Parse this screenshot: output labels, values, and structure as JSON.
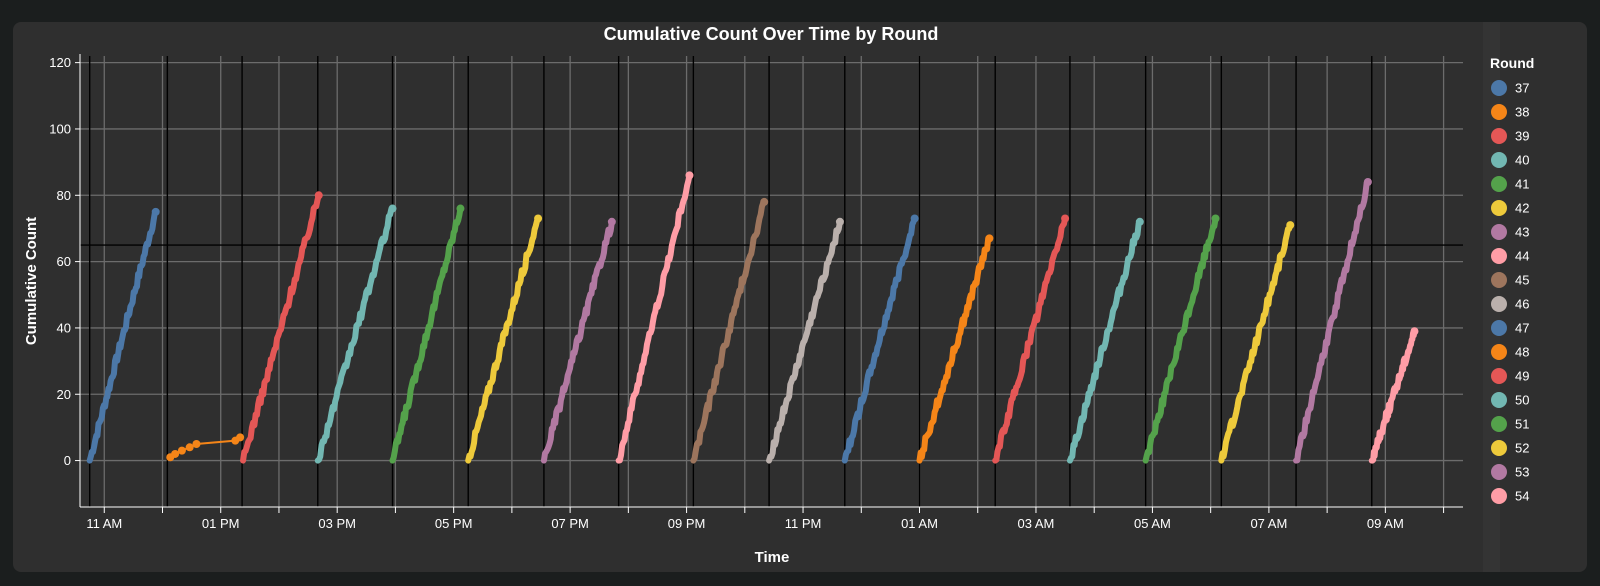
{
  "chart_data": {
    "type": "line",
    "title": "Cumulative Count Over Time by Round",
    "xlabel": "Time",
    "ylabel": "Cumulative Count",
    "ylim": [
      -14,
      122
    ],
    "yticks": [
      0,
      20,
      40,
      60,
      80,
      100,
      120
    ],
    "xlim": [
      "2024-01-01T10:35",
      "2024-01-02T10:20"
    ],
    "xticks": [
      {
        "t": "2024-01-01T11:00",
        "label": "11 AM"
      },
      {
        "t": "2024-01-01T13:00",
        "label": "01 PM"
      },
      {
        "t": "2024-01-01T15:00",
        "label": "03 PM"
      },
      {
        "t": "2024-01-01T17:00",
        "label": "05 PM"
      },
      {
        "t": "2024-01-01T19:00",
        "label": "07 PM"
      },
      {
        "t": "2024-01-01T21:00",
        "label": "09 PM"
      },
      {
        "t": "2024-01-01T23:00",
        "label": "11 PM"
      },
      {
        "t": "2024-01-02T01:00",
        "label": "01 AM"
      },
      {
        "t": "2024-01-02T03:00",
        "label": "03 AM"
      },
      {
        "t": "2024-01-02T05:00",
        "label": "05 AM"
      },
      {
        "t": "2024-01-02T07:00",
        "label": "07 AM"
      },
      {
        "t": "2024-01-02T09:00",
        "label": "09 AM"
      }
    ],
    "grid": true,
    "legend": {
      "title": "Round",
      "placement": "right"
    },
    "reference_lines": {
      "horizontal_y": 65,
      "vertical_times": [
        "2024-01-01T10:45",
        "2024-01-01T12:05",
        "2024-01-01T13:22",
        "2024-01-01T14:40",
        "2024-01-01T15:57",
        "2024-01-01T17:15",
        "2024-01-01T18:33",
        "2024-01-01T19:50",
        "2024-01-01T21:07",
        "2024-01-01T22:25",
        "2024-01-01T23:43",
        "2024-01-02T01:00",
        "2024-01-02T02:18",
        "2024-01-02T03:35",
        "2024-01-02T04:53",
        "2024-01-02T06:11",
        "2024-01-02T07:28",
        "2024-01-02T08:46"
      ]
    },
    "series": [
      {
        "name": "37",
        "color": "#4c78a8",
        "start": "2024-01-01T10:45",
        "end": "2024-01-01T11:53",
        "final": 75
      },
      {
        "name": "38",
        "color": "#f58518",
        "markers": true,
        "points": [
          [
            "2024-01-01T12:08",
            1
          ],
          [
            "2024-01-01T12:13",
            2
          ],
          [
            "2024-01-01T12:20",
            3
          ],
          [
            "2024-01-01T12:28",
            4
          ],
          [
            "2024-01-01T12:35",
            5
          ],
          [
            "2024-01-01T13:15",
            6
          ],
          [
            "2024-01-01T13:20",
            7
          ]
        ]
      },
      {
        "name": "39",
        "color": "#e45756",
        "start": "2024-01-01T13:23",
        "end": "2024-01-01T14:41",
        "final": 80
      },
      {
        "name": "40",
        "color": "#72b7b2",
        "start": "2024-01-01T14:40",
        "end": "2024-01-01T15:57",
        "final": 76
      },
      {
        "name": "41",
        "color": "#54a24b",
        "start": "2024-01-01T15:57",
        "end": "2024-01-01T17:07",
        "final": 76
      },
      {
        "name": "42",
        "color": "#eeca3b",
        "start": "2024-01-01T17:15",
        "end": "2024-01-01T18:27",
        "final": 73
      },
      {
        "name": "43",
        "color": "#b279a2",
        "start": "2024-01-01T18:33",
        "end": "2024-01-01T19:43",
        "final": 72
      },
      {
        "name": "44",
        "color": "#ff9da6",
        "start": "2024-01-01T19:50",
        "end": "2024-01-01T21:03",
        "final": 86
      },
      {
        "name": "45",
        "color": "#9d755d",
        "start": "2024-01-01T21:07",
        "end": "2024-01-01T22:20",
        "final": 78
      },
      {
        "name": "46",
        "color": "#bab0ac",
        "start": "2024-01-01T22:25",
        "end": "2024-01-01T23:38",
        "final": 72
      },
      {
        "name": "47",
        "color": "#4c78a8",
        "start": "2024-01-01T23:43",
        "end": "2024-01-02T00:55",
        "final": 73
      },
      {
        "name": "48",
        "color": "#f58518",
        "start": "2024-01-02T01:00",
        "end": "2024-01-02T02:12",
        "final": 67
      },
      {
        "name": "49",
        "color": "#e45756",
        "start": "2024-01-02T02:18",
        "end": "2024-01-02T03:30",
        "final": 73
      },
      {
        "name": "50",
        "color": "#72b7b2",
        "start": "2024-01-02T03:35",
        "end": "2024-01-02T04:47",
        "final": 72
      },
      {
        "name": "51",
        "color": "#54a24b",
        "start": "2024-01-02T04:53",
        "end": "2024-01-02T06:05",
        "final": 73
      },
      {
        "name": "52",
        "color": "#eeca3b",
        "start": "2024-01-02T06:11",
        "end": "2024-01-02T07:22",
        "final": 71
      },
      {
        "name": "53",
        "color": "#b279a2",
        "start": "2024-01-02T07:28",
        "end": "2024-01-02T08:42",
        "final": 84
      },
      {
        "name": "54",
        "color": "#ff9da6",
        "start": "2024-01-02T08:46",
        "end": "2024-01-02T09:30",
        "final": 39
      }
    ]
  }
}
